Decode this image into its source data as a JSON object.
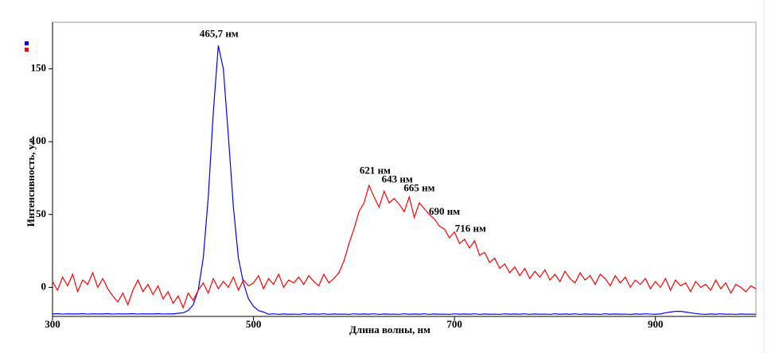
{
  "chart_data": {
    "type": "line",
    "x_label": "Длина волны, нм",
    "y_label": "Интенсивность, у.е.",
    "xlim": [
      300,
      1000
    ],
    "ylim": [
      -20,
      182
    ],
    "xticks": [
      300,
      500,
      700,
      900
    ],
    "yticks": [
      0,
      50,
      100,
      150
    ],
    "x": [
      300,
      305,
      310,
      315,
      320,
      325,
      330,
      335,
      340,
      345,
      350,
      355,
      360,
      365,
      370,
      375,
      380,
      385,
      390,
      395,
      400,
      405,
      410,
      415,
      420,
      425,
      430,
      435,
      440,
      445,
      450,
      455,
      460,
      465,
      470,
      475,
      480,
      485,
      490,
      495,
      500,
      505,
      510,
      515,
      520,
      525,
      530,
      535,
      540,
      545,
      550,
      555,
      560,
      565,
      570,
      575,
      580,
      585,
      590,
      595,
      600,
      605,
      610,
      615,
      620,
      625,
      630,
      635,
      640,
      645,
      650,
      655,
      660,
      665,
      670,
      675,
      680,
      685,
      690,
      695,
      700,
      705,
      710,
      715,
      720,
      725,
      730,
      735,
      740,
      745,
      750,
      755,
      760,
      765,
      770,
      775,
      780,
      785,
      790,
      795,
      800,
      805,
      810,
      815,
      820,
      825,
      830,
      835,
      840,
      845,
      850,
      855,
      860,
      865,
      870,
      875,
      880,
      885,
      890,
      895,
      900,
      905,
      910,
      915,
      920,
      925,
      930,
      935,
      940,
      945,
      950,
      955,
      960,
      965,
      970,
      975,
      980,
      985,
      990,
      995,
      1000
    ],
    "series": [
      {
        "color": "#0000ff",
        "values": [
          -18.3,
          -18.1,
          -18.4,
          -18.2,
          -18.3,
          -18.3,
          -18.1,
          -18.4,
          -18.2,
          -18.3,
          -18.3,
          -18.1,
          -18.4,
          -18.2,
          -18.3,
          -18.3,
          -18.1,
          -18.4,
          -18.2,
          -18.3,
          -18.3,
          -18.1,
          -18.4,
          -18.2,
          -18.3,
          -17.8,
          -17.5,
          -16,
          -12,
          -2,
          20,
          62,
          120,
          166,
          150,
          104,
          55,
          20,
          3,
          -8,
          -13,
          -16,
          -17,
          -18.5,
          -18.2,
          -18.6,
          -18.3,
          -18.5,
          -18.4,
          -18.6,
          -18.2,
          -18.5,
          -18.3,
          -18.5,
          -18.2,
          -18.6,
          -18.3,
          -18.5,
          -18.4,
          -18.6,
          -18.2,
          -18.5,
          -18.3,
          -18.5,
          -18.2,
          -18.6,
          -18.3,
          -18.5,
          -18.4,
          -18.6,
          -18.2,
          -18.5,
          -18.3,
          -18.5,
          -18.2,
          -18.6,
          -18.3,
          -18.5,
          -18.4,
          -18.6,
          -18.2,
          -18.5,
          -18.3,
          -18.5,
          -18.2,
          -18.6,
          -18.3,
          -18.5,
          -18.4,
          -18.6,
          -18.2,
          -18.5,
          -18.3,
          -18.5,
          -18.2,
          -18.6,
          -18.3,
          -18.5,
          -18.4,
          -18.6,
          -18.2,
          -18.5,
          -18.3,
          -18.5,
          -18.2,
          -18.6,
          -18.3,
          -18.5,
          -18.4,
          -18.6,
          -18.2,
          -18.5,
          -18.3,
          -18.5,
          -18.4,
          -18.6,
          -18.3,
          -18.5,
          -18.2,
          -18.4,
          -18.5,
          -18.3,
          -17.5,
          -17,
          -16.5,
          -16.5,
          -17,
          -17.5,
          -18,
          -18.4,
          -18.6,
          -18.3,
          -18.5,
          -18.2,
          -18.5,
          -18.4,
          -18.6,
          -18.3,
          -18.5,
          -18.4,
          -18.6
        ]
      },
      {
        "color": "#ff0000",
        "values": [
          4,
          -2,
          7,
          1,
          9,
          -3,
          5,
          2,
          10,
          0,
          6,
          -1,
          -6,
          -10,
          -4,
          -12,
          -2,
          5,
          -3,
          2,
          -5,
          1,
          -8,
          -3,
          -11,
          -6,
          -14,
          -4,
          -9,
          -2,
          3,
          -4,
          6,
          -1,
          4,
          0,
          7,
          -2,
          5,
          1,
          3,
          8,
          -1,
          6,
          2,
          9,
          0,
          5,
          3,
          7,
          2,
          8,
          4,
          1,
          9,
          3,
          6,
          10,
          18,
          30,
          40,
          52,
          58,
          70,
          62,
          55,
          66,
          58,
          61,
          57,
          52,
          62,
          48,
          58,
          54,
          50,
          47,
          42,
          40,
          34,
          38,
          30,
          33,
          27,
          32,
          22,
          24,
          17,
          20,
          13,
          16,
          10,
          14,
          8,
          13,
          6,
          11,
          7,
          12,
          5,
          9,
          4,
          11,
          6,
          3,
          10,
          5,
          8,
          2,
          9,
          6,
          1,
          8,
          3,
          7,
          0,
          5,
          2,
          6,
          -1,
          4,
          0,
          6,
          -2,
          5,
          1,
          3,
          -3,
          4,
          0,
          2,
          -2,
          5,
          -1,
          3,
          -4,
          2,
          0,
          -3,
          1,
          -1
        ]
      }
    ],
    "annotations": [
      {
        "text": "465,7 нм",
        "x": 465.7,
        "y": 166
      },
      {
        "text": "621 нм",
        "x": 621,
        "y": 72
      },
      {
        "text": "643 нм",
        "x": 643,
        "y": 66
      },
      {
        "text": "665 нм",
        "x": 665,
        "y": 60
      },
      {
        "text": "690 нм",
        "x": 690,
        "y": 44
      },
      {
        "text": "716 нм",
        "x": 716,
        "y": 32
      }
    ]
  }
}
